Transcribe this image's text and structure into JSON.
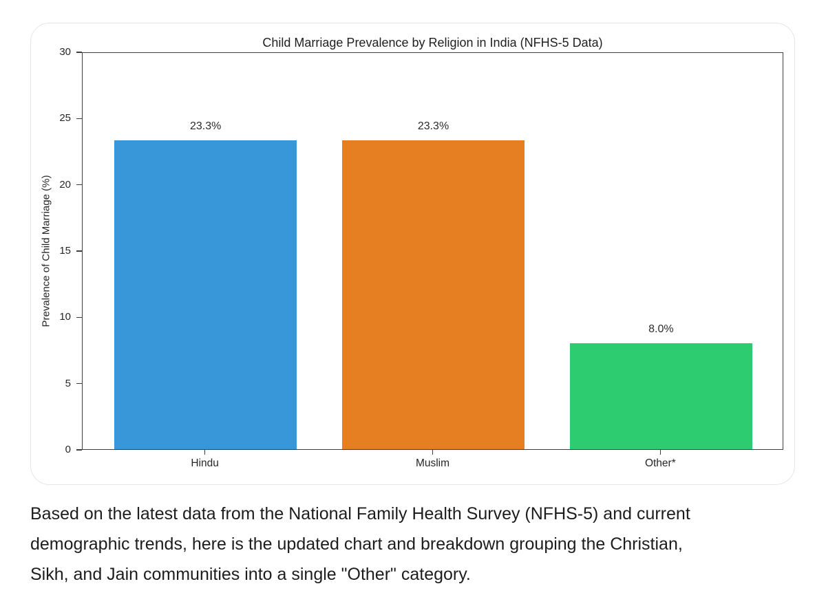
{
  "chart_data": {
    "type": "bar",
    "title": "Child Marriage Prevalence by Religion in India (NFHS-5 Data)",
    "categories": [
      "Hindu",
      "Muslim",
      "Other*"
    ],
    "values": [
      23.3,
      23.3,
      8.0
    ],
    "value_labels": [
      "23.3%",
      "23.3%",
      "8.0%"
    ],
    "bar_colors": [
      "#3897d8",
      "#e67e22",
      "#2ecc71"
    ],
    "xlabel": "",
    "ylabel": "Prevalence of Child Marriage (%)",
    "ylim": [
      0,
      30
    ],
    "yticks": [
      0,
      5,
      10,
      15,
      20,
      25,
      30
    ],
    "grid": false,
    "legend": "none",
    "spine_color": "#3d3d3d"
  },
  "caption": {
    "lines": [
      "Based on the latest data from the National Family Health Survey (NFHS-5) and current",
      "demographic trends, here is the updated chart and breakdown grouping the Christian,",
      "Sikh, and Jain communities into a single \"Other\" category."
    ]
  }
}
